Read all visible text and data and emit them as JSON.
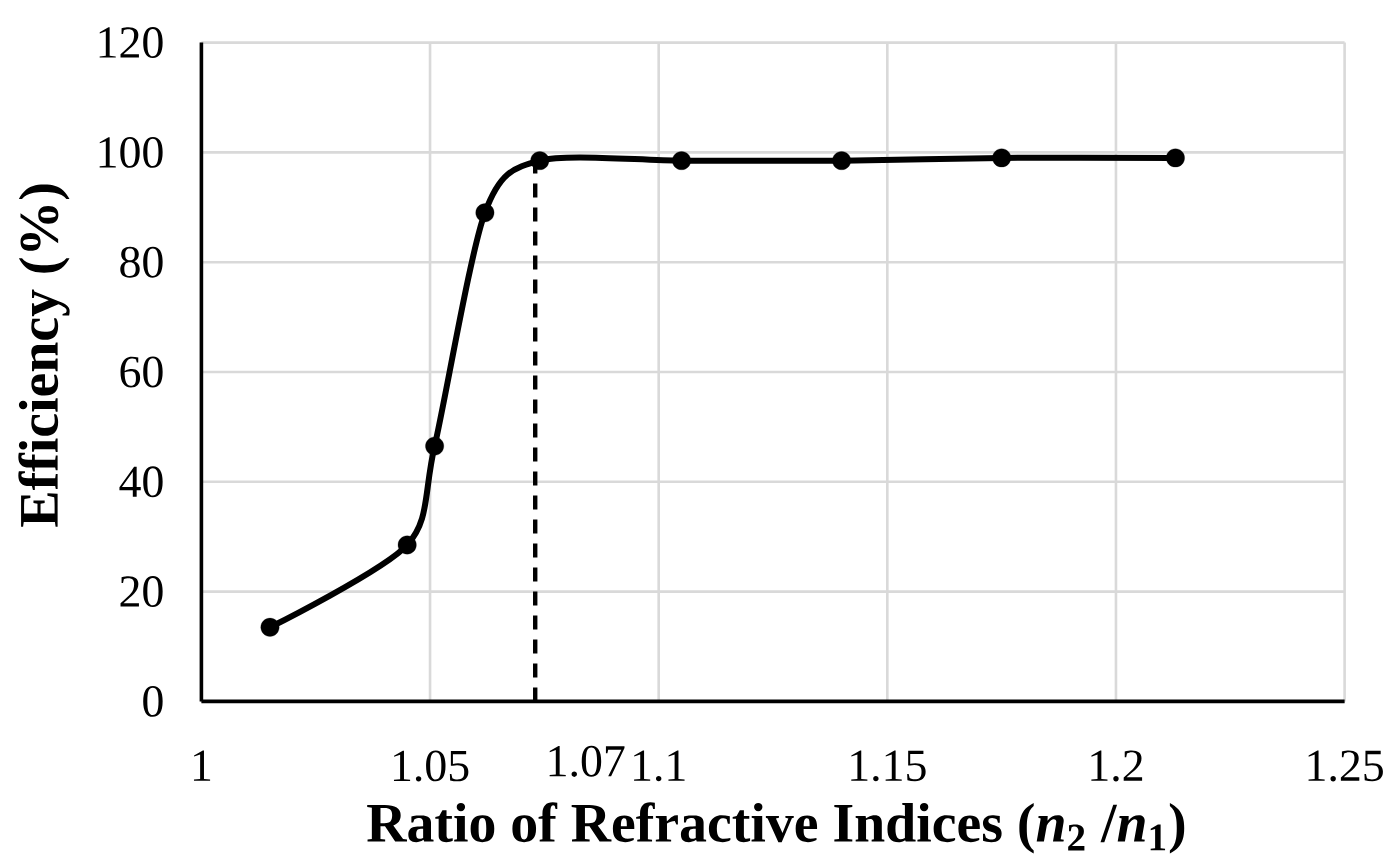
{
  "chart_data": {
    "type": "line",
    "xlabel": "Ratio of Refractive Indices (*n*$_{2}$ /*n*$_{1}$)",
    "ylabel": "Efficiency (%)",
    "x": [
      1.015,
      1.045,
      1.051,
      1.062,
      1.074,
      1.105,
      1.14,
      1.175,
      1.213
    ],
    "series": [
      {
        "color": "#000000",
        "values": [
          13.5,
          28.5,
          46.5,
          89,
          98.5,
          98.5,
          98.5,
          99,
          99
        ]
      }
    ],
    "xlim": [
      1,
      1.25
    ],
    "xticks": [
      1,
      1.05,
      1.1,
      1.15,
      1.2,
      1.25
    ],
    "ylim": [
      0,
      120
    ],
    "yticks": [
      0,
      20,
      40,
      60,
      80,
      100,
      120
    ],
    "ref_lines": [
      {
        "axis": "x",
        "value": 1.073,
        "label": "1.07",
        "color": "#000000",
        "line_style": "dashed"
      }
    ],
    "grid": true,
    "marker": "circle",
    "line_style": "solid"
  }
}
